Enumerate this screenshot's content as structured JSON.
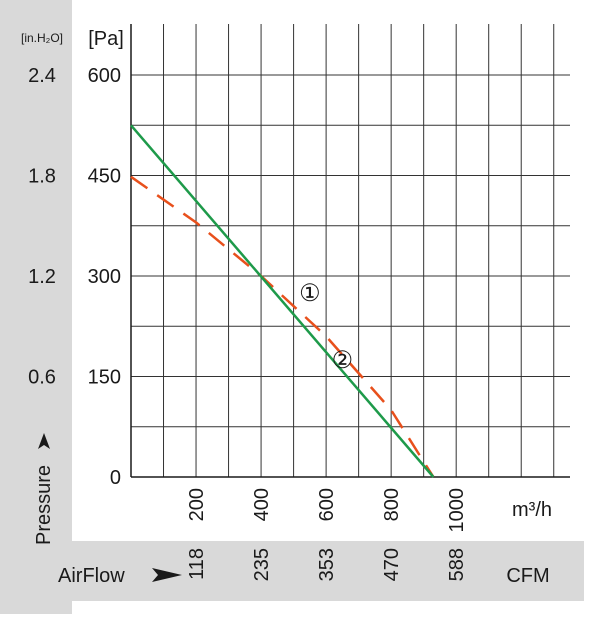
{
  "chart_data": {
    "type": "line",
    "pressure_units": {
      "inh2o": "[in.H₂O]",
      "pa": "[Pa]"
    },
    "y_ticks_pa": [
      "600",
      "450",
      "300",
      "150",
      "0"
    ],
    "y_ticks_inh2o": [
      "2.4",
      "1.8",
      "1.2",
      "0.6"
    ],
    "y_values_pa": [
      600,
      450,
      300,
      150,
      0
    ],
    "ylim": [
      0,
      600
    ],
    "x_unit_m3h": "m³/h",
    "x_ticks_m3h": [
      "200",
      "400",
      "600",
      "800",
      "1000"
    ],
    "x_values_m3h": [
      200,
      400,
      600,
      800,
      1000
    ],
    "xlim": [
      0,
      1350
    ],
    "x_unit_cfm": "CFM",
    "x_ticks_cfm": [
      "118",
      "235",
      "353",
      "470",
      "588"
    ],
    "ylabel": "Pressure",
    "xlabel": "AirFlow",
    "grid": true,
    "series": [
      {
        "label": "①",
        "style": "dashed",
        "color": "#e8501c",
        "x": [
          0,
          200,
          400,
          600,
          800,
          930
        ],
        "y": [
          448,
          380,
          300,
          210,
          100,
          0
        ]
      },
      {
        "label": "②",
        "style": "solid",
        "color": "#1e9a4a",
        "x": [
          0,
          930
        ],
        "y": [
          525,
          0
        ]
      }
    ]
  }
}
